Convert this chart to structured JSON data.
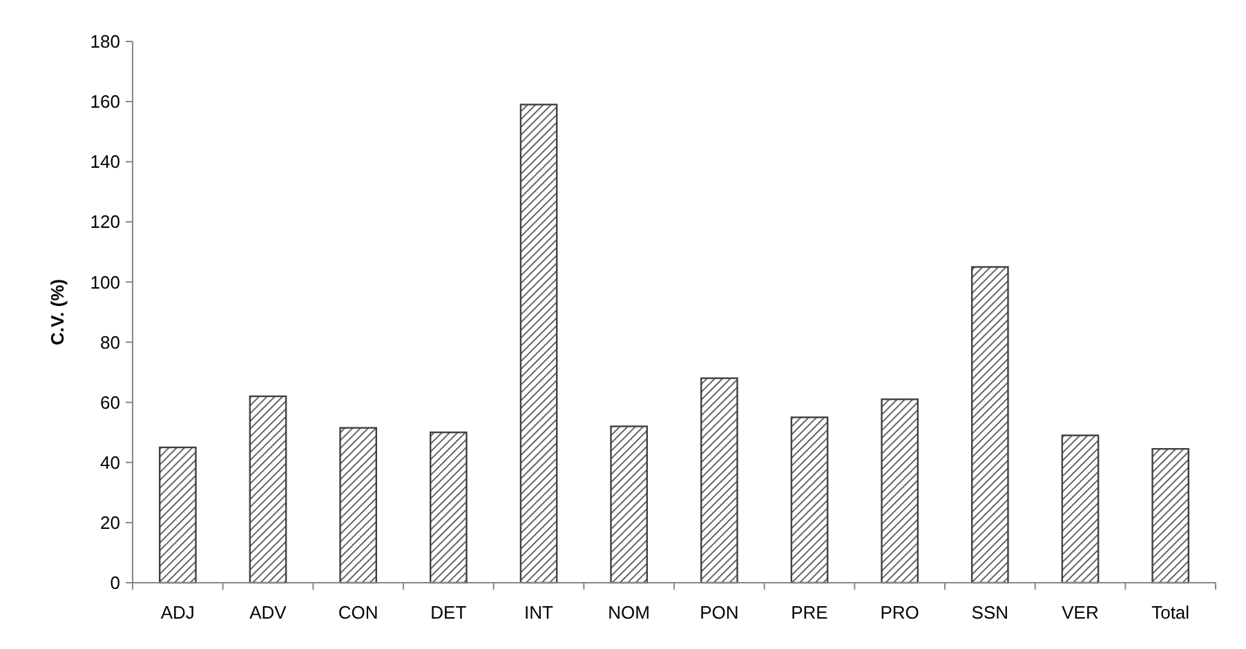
{
  "chart_data": {
    "type": "bar",
    "ylabel": "C.V. (%)",
    "categories": [
      "ADJ",
      "ADV",
      "CON",
      "DET",
      "INT",
      "NOM",
      "PON",
      "PRE",
      "PRO",
      "SSN",
      "VER",
      "Total"
    ],
    "values": [
      45,
      62,
      51.5,
      50,
      159,
      52,
      68,
      55,
      61,
      105,
      49,
      44.5
    ],
    "color": "#404040",
    "ylim": [
      0,
      180
    ],
    "yticks": [
      0,
      20,
      40,
      60,
      80,
      100,
      120,
      140,
      160,
      180
    ],
    "grid": false
  }
}
